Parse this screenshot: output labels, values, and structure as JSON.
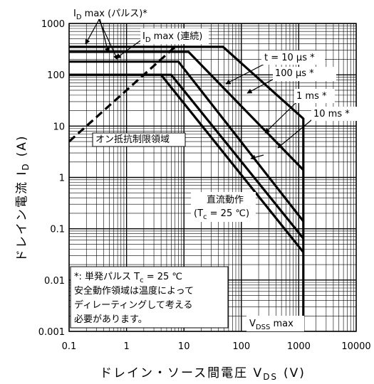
{
  "chart_data": {
    "type": "line",
    "xscale": "log",
    "yscale": "log",
    "xlim": [
      0.1,
      10000
    ],
    "ylim": [
      0.001,
      1000
    ],
    "grid": true,
    "x_ticks": [
      "0.1",
      "1",
      "10",
      "100",
      "1000",
      "10000"
    ],
    "y_ticks": [
      "1000",
      "100",
      "10",
      "1",
      "0.1",
      "0.01",
      "0.001"
    ],
    "xlabel": {
      "main": "ドレイン・ソース間電圧 V",
      "sub": "DS",
      "unit": "(V)"
    },
    "ylabel": {
      "main": "ドレイン電流 I",
      "sub": "D",
      "unit": "(A)"
    },
    "series": [
      {
        "name": "t = 10 μs *",
        "x": [
          0.1,
          48,
          1200,
          1200
        ],
        "y": [
          350,
          350,
          14,
          0.001
        ]
      },
      {
        "name": "100 μs *",
        "x": [
          0.1,
          12,
          1200
        ],
        "y": [
          280,
          280,
          1.4
        ]
      },
      {
        "name": "1 ms *",
        "x": [
          0.1,
          8,
          1200
        ],
        "y": [
          180,
          180,
          0.14
        ]
      },
      {
        "name": "10 ms *",
        "x": [
          0.1,
          6,
          1200
        ],
        "y": [
          100,
          100,
          0.065
        ]
      },
      {
        "name": "直流動作 (Tc = 25 ℃)",
        "x": [
          0.1,
          4,
          1200
        ],
        "y": [
          100,
          100,
          0.035
        ]
      }
    ],
    "ron_limit": {
      "name": "オン抵抗制限領域",
      "x": [
        0.1,
        7
      ],
      "y": [
        5,
        350
      ]
    },
    "annotations": {
      "id_max_pulse": {
        "main": "I",
        "sub": "D",
        "rest": " max (パルス)*"
      },
      "id_max_cont": {
        "main": "I",
        "sub": "D",
        "rest": " max (連続)"
      },
      "t10us": "t = 10 μs *",
      "t100us": "100 μs *",
      "t1ms": "1 ms *",
      "t10ms": "10 ms *",
      "dc_line1": "直流動作",
      "dc_line2": {
        "pre": "(T",
        "sub": "c",
        "post": " = 25 ℃)"
      },
      "ron": "オン抵抗制限領域",
      "vdss": {
        "main": "V",
        "sub": "DSS",
        "rest": " max"
      }
    },
    "note": {
      "line1": {
        "pre": "*: 単発パルス T",
        "sub": "c",
        "post": " = 25 ℃"
      },
      "line2": "安全動作領域は温度によって",
      "line3": "ディレーティングして考える",
      "line4": "必要があります。"
    }
  }
}
